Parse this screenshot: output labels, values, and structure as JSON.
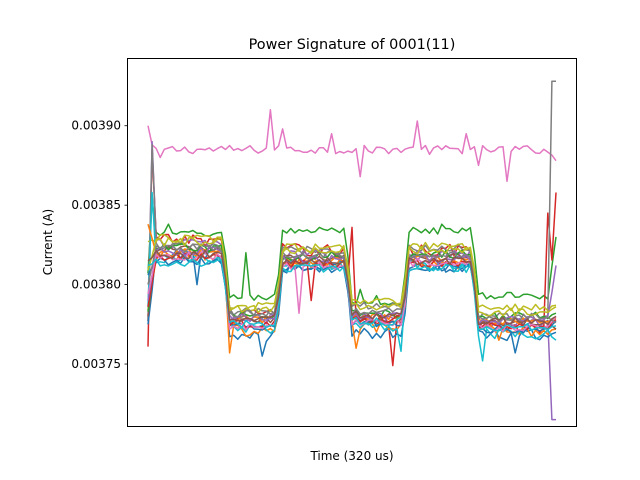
{
  "chart_data": {
    "type": "line",
    "title": "Power Signature of 0001(11)",
    "xlabel": "Time (320 us)",
    "ylabel": "Current (A)",
    "x_ticks_shown": false,
    "x_range": [
      0,
      100
    ],
    "ylim": [
      0.003711,
      0.003942
    ],
    "yticks": [
      0.00375,
      0.0038,
      0.00385,
      0.0039
    ],
    "ytick_labels": [
      "0.00375",
      "0.00380",
      "0.00385",
      "0.00390"
    ],
    "grid": false,
    "legend": "none",
    "colors": [
      "#1f77b4",
      "#ff7f0e",
      "#2ca02c",
      "#d62728",
      "#9467bd",
      "#8c564b",
      "#e377c2",
      "#7f7f7f",
      "#bcbd22",
      "#17becf"
    ],
    "n_points": 101,
    "series": [
      {
        "color": "#e377c2",
        "start": 0.0039,
        "end": 0.003878,
        "levels": [
          0.003885,
          0.003885,
          0.003885,
          0.003885
        ],
        "jitter": 1.2e-06,
        "spikes": [
          [
            1,
            0.003888
          ],
          [
            3,
            0.00388
          ],
          [
            30,
            0.00391
          ],
          [
            33,
            0.003898
          ],
          [
            45,
            0.003895
          ],
          [
            49,
            0.003884
          ],
          [
            52,
            0.003868
          ],
          [
            66,
            0.003903
          ],
          [
            69,
            0.003882
          ],
          [
            78,
            0.003895
          ],
          [
            81,
            0.003875
          ],
          [
            88,
            0.003865
          ]
        ]
      },
      {
        "color": "#2ca02c",
        "start": 0.003807,
        "end": 0.00383,
        "levels": [
          0.003832,
          0.003792,
          0.003834,
          0.003787,
          0.003834,
          0.003793
        ],
        "jitter": 1e-06,
        "spikes": [
          [
            1,
            0.003853
          ],
          [
            5,
            0.003838
          ],
          [
            24,
            0.00382
          ],
          [
            42,
            0.003836
          ],
          [
            52,
            0.003797
          ],
          [
            56,
            0.003793
          ],
          [
            72,
            0.003838
          ]
        ]
      },
      {
        "color": "#d62728",
        "start": 0.003761,
        "end": 0.003858,
        "levels": [
          0.003828,
          0.003782,
          0.003822,
          0.003777,
          0.003822,
          0.003773
        ],
        "jitter": 1.8e-06,
        "spikes": [
          [
            1,
            0.003885
          ],
          [
            50,
            0.003836
          ],
          [
            60,
            0.003749
          ],
          [
            98,
            0.003845
          ]
        ]
      },
      {
        "color": "#9467bd",
        "start": 0.003777,
        "end": 0.003715,
        "levels": [
          0.003826,
          0.003778,
          0.003819,
          0.003779,
          0.00382,
          0.003776
        ],
        "jitter": 1.5e-06,
        "spikes": [
          [
            1,
            0.00389
          ],
          [
            99,
            0.003715
          ]
        ]
      },
      {
        "color": "#7f7f7f",
        "start": 0.003777,
        "end": 0.003928,
        "levels": [
          0.003824,
          0.003783,
          0.003822,
          0.003787,
          0.003823,
          0.00378
        ],
        "jitter": 1.2e-06,
        "spikes": [
          [
            1,
            0.003888
          ],
          [
            99,
            0.003928
          ]
        ]
      },
      {
        "color": "#1f77b4",
        "start": 0.003775,
        "end": 0.00377,
        "levels": [
          0.003818,
          0.003768,
          0.003811,
          0.00377,
          0.003811,
          0.003768
        ],
        "jitter": 1.8e-06,
        "spikes": [
          [
            12,
            0.0038
          ],
          [
            28,
            0.003755
          ],
          [
            90,
            0.003757
          ]
        ]
      },
      {
        "color": "#ff7f0e",
        "start": 0.003784,
        "end": 0.003772,
        "levels": [
          0.003819,
          0.003771,
          0.003813,
          0.003773,
          0.003813,
          0.003771
        ],
        "jitter": 1.8e-06,
        "spikes": [
          [
            20,
            0.003757
          ],
          [
            51,
            0.00376
          ],
          [
            86,
            0.003765
          ]
        ]
      },
      {
        "color": "#bcbd22",
        "start": 0.003827,
        "end": 0.003787,
        "levels": [
          0.003829,
          0.003786,
          0.003823,
          0.003789,
          0.003824,
          0.003786
        ],
        "jitter": 1.2e-06,
        "spikes": []
      },
      {
        "color": "#17becf",
        "start": 0.003786,
        "end": 0.003765,
        "levels": [
          0.003816,
          0.003772,
          0.003812,
          0.003774,
          0.003812,
          0.003769
        ],
        "jitter": 1.5e-06,
        "spikes": [
          [
            1,
            0.003858
          ],
          [
            62,
            0.003758
          ],
          [
            82,
            0.003752
          ]
        ]
      },
      {
        "color": "#8c564b",
        "start": 0.00378,
        "end": 0.003772,
        "levels": [
          0.003822,
          0.003777,
          0.003816,
          0.003778,
          0.003817,
          0.003776
        ],
        "jitter": 1.2e-06,
        "spikes": []
      },
      {
        "color": "#1f77b4",
        "start": 0.003806,
        "end": 0.003777,
        "levels": [
          0.003815,
          0.003774,
          0.00381,
          0.003776,
          0.003811,
          0.003772
        ],
        "jitter": 1.2e-06,
        "spikes": []
      },
      {
        "color": "#ff7f0e",
        "start": 0.003838,
        "end": 0.003779,
        "levels": [
          0.00382,
          0.003778,
          0.003815,
          0.00378,
          0.003816,
          0.003777
        ],
        "jitter": 1.2e-06,
        "spikes": []
      },
      {
        "color": "#2ca02c",
        "start": 0.003783,
        "end": 0.003782,
        "levels": [
          0.003823,
          0.003781,
          0.003818,
          0.003782,
          0.003819,
          0.00378
        ],
        "jitter": 1.2e-06,
        "spikes": []
      },
      {
        "color": "#d62728",
        "start": 0.003786,
        "end": 0.003778,
        "levels": [
          0.003817,
          0.003775,
          0.003813,
          0.003778,
          0.003813,
          0.003774
        ],
        "jitter": 1.2e-06,
        "spikes": [
          [
            40,
            0.00379
          ]
        ]
      },
      {
        "color": "#9467bd",
        "start": 0.00379,
        "end": 0.003812,
        "levels": [
          0.003821,
          0.003779,
          0.003816,
          0.00378,
          0.003816,
          0.003778
        ],
        "jitter": 1.2e-06,
        "spikes": []
      },
      {
        "color": "#e377c2",
        "start": 0.003794,
        "end": 0.00378,
        "levels": [
          0.003818,
          0.003773,
          0.003812,
          0.003776,
          0.003814,
          0.003773
        ],
        "jitter": 1.2e-06,
        "spikes": [
          [
            37,
            0.003782
          ]
        ]
      },
      {
        "color": "#7f7f7f",
        "start": 0.0038,
        "end": 0.003776,
        "levels": [
          0.003823,
          0.003782,
          0.003819,
          0.003783,
          0.003819,
          0.003779
        ],
        "jitter": 1.2e-06,
        "spikes": []
      },
      {
        "color": "#bcbd22",
        "start": 0.003809,
        "end": 0.003786,
        "levels": [
          0.003827,
          0.003785,
          0.003822,
          0.003786,
          0.003822,
          0.003783
        ],
        "jitter": 1.2e-06,
        "spikes": []
      },
      {
        "color": "#17becf",
        "start": 0.003812,
        "end": 0.003774,
        "levels": [
          0.003814,
          0.003775,
          0.00381,
          0.003777,
          0.00381,
          0.003773
        ],
        "jitter": 1.2e-06,
        "spikes": []
      },
      {
        "color": "#8c564b",
        "start": 0.003815,
        "end": 0.00378,
        "levels": [
          0.003819,
          0.003779,
          0.003815,
          0.003781,
          0.003815,
          0.003777
        ],
        "jitter": 1.2e-06,
        "spikes": []
      }
    ]
  }
}
